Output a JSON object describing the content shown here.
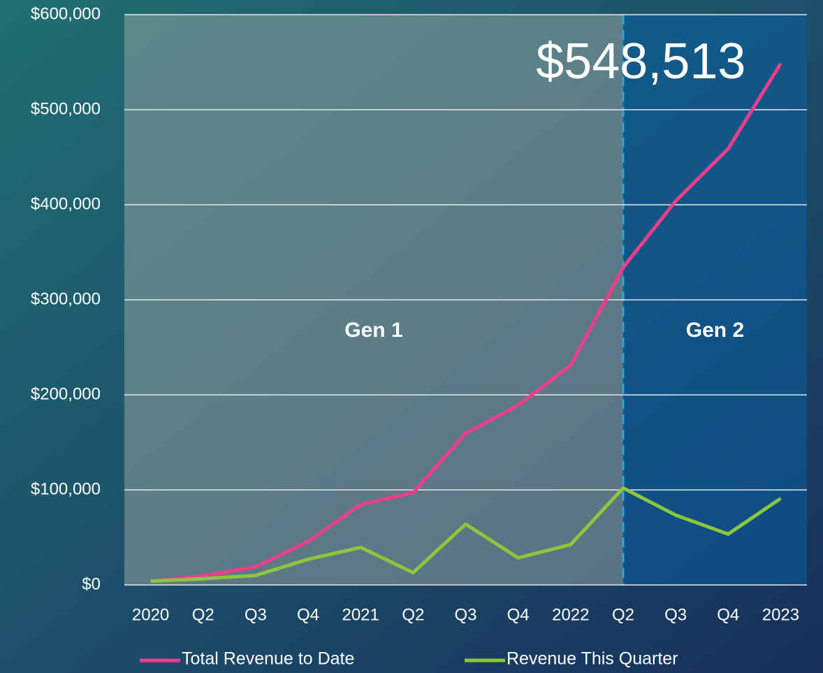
{
  "chart_data": {
    "type": "line",
    "categories": [
      "2020",
      "Q2",
      "Q3",
      "Q4",
      "2021",
      "Q2",
      "Q3",
      "Q4",
      "2022",
      "Q2",
      "Q3",
      "Q4",
      "2023"
    ],
    "series": [
      {
        "name": "Total Revenue to Date",
        "color": "#ee3e8a",
        "values": [
          4000,
          9500,
          19000,
          45600,
          84500,
          97000,
          159500,
          189000,
          231000,
          334000,
          404000,
          459000,
          548513
        ],
        "value_labels": [
          null,
          null,
          null,
          null,
          null,
          null,
          null,
          null,
          null,
          null,
          null,
          null,
          "$548,513"
        ]
      },
      {
        "name": "Revenue This Quarter",
        "color": "#8cc63f",
        "values": [
          4000,
          6500,
          10000,
          27000,
          39500,
          13000,
          64000,
          28500,
          42500,
          102000,
          73500,
          53500,
          91000
        ]
      }
    ],
    "ylim": [
      0,
      600000
    ],
    "yticks": [
      {
        "value": 0,
        "label": "$0"
      },
      {
        "value": 100000,
        "label": "$100,000"
      },
      {
        "value": 200000,
        "label": "$200,000"
      },
      {
        "value": 300000,
        "label": "$300,000"
      },
      {
        "value": 400000,
        "label": "$400,000"
      },
      {
        "value": 500000,
        "label": "$500,000"
      },
      {
        "value": 600000,
        "label": "$600,000"
      }
    ],
    "grid": true,
    "regions": [
      {
        "label": "Gen 1",
        "color": "#8fa3a0"
      },
      {
        "label": "Gen 2",
        "color": "#0a5fa0"
      }
    ],
    "divider_at": 9,
    "legend": "bottom"
  }
}
